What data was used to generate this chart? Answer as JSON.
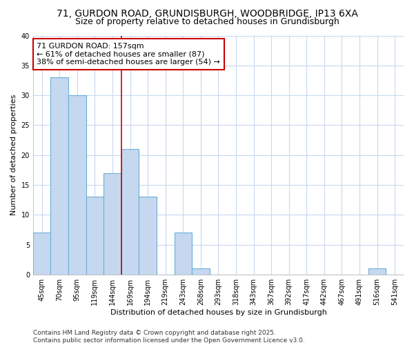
{
  "title1": "71, GURDON ROAD, GRUNDISBURGH, WOODBRIDGE, IP13 6XA",
  "title2": "Size of property relative to detached houses in Grundisburgh",
  "xlabel": "Distribution of detached houses by size in Grundisburgh",
  "ylabel": "Number of detached properties",
  "categories": [
    "45sqm",
    "70sqm",
    "95sqm",
    "119sqm",
    "144sqm",
    "169sqm",
    "194sqm",
    "219sqm",
    "243sqm",
    "268sqm",
    "293sqm",
    "318sqm",
    "343sqm",
    "367sqm",
    "392sqm",
    "417sqm",
    "442sqm",
    "467sqm",
    "491sqm",
    "516sqm",
    "541sqm"
  ],
  "values": [
    7,
    33,
    30,
    13,
    17,
    21,
    13,
    0,
    7,
    1,
    0,
    0,
    0,
    0,
    0,
    0,
    0,
    0,
    0,
    1,
    0
  ],
  "bar_color": "#c5d8f0",
  "bar_edge_color": "#6baed6",
  "background_color": "#ffffff",
  "grid_color": "#c8d8f0",
  "vline_x": 4.5,
  "vline_color": "#cc0000",
  "annotation_text": "71 GURDON ROAD: 157sqm\n← 61% of detached houses are smaller (87)\n38% of semi-detached houses are larger (54) →",
  "annotation_box_color": "#ffffff",
  "annotation_box_edge": "#cc0000",
  "ylim": [
    0,
    40
  ],
  "yticks": [
    0,
    5,
    10,
    15,
    20,
    25,
    30,
    35,
    40
  ],
  "footer": "Contains HM Land Registry data © Crown copyright and database right 2025.\nContains public sector information licensed under the Open Government Licence v3.0.",
  "title_fontsize": 10,
  "subtitle_fontsize": 9,
  "axis_fontsize": 8,
  "tick_fontsize": 7,
  "annotation_fontsize": 8,
  "footer_fontsize": 6.5
}
